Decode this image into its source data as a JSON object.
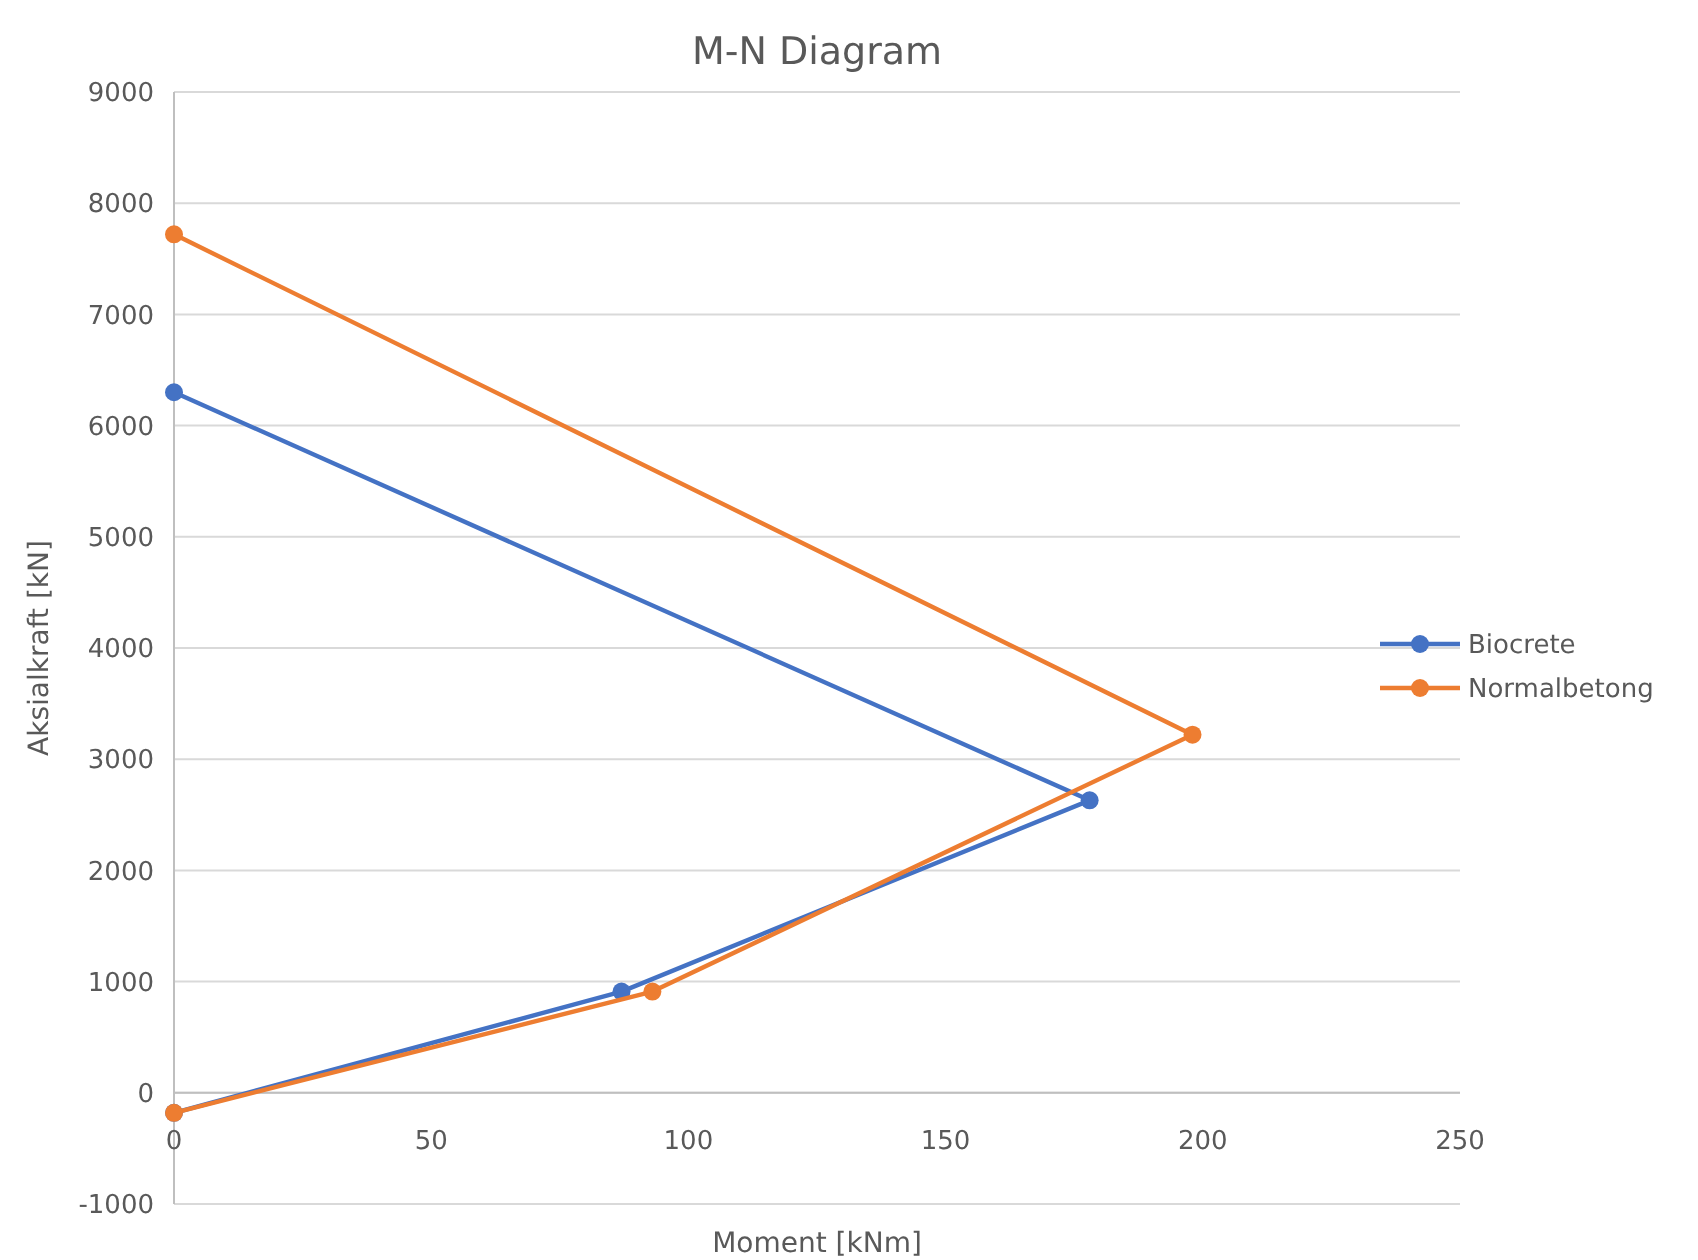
{
  "chart_data": {
    "type": "line",
    "title": "M-N Diagram",
    "xlabel": "Moment [kNm]",
    "ylabel": "Aksialkraft [kN]",
    "series": [
      {
        "name": "Biocrete",
        "color": "#4472c4",
        "x": [
          0,
          87,
          178,
          0
        ],
        "values": [
          -180,
          910,
          2630,
          6300
        ]
      },
      {
        "name": "Normalbetong",
        "color": "#ed7d31",
        "x": [
          0,
          93,
          198,
          0
        ],
        "values": [
          -180,
          910,
          3220,
          7720
        ]
      }
    ],
    "xlim": [
      0,
      250
    ],
    "xticks": [
      0,
      50,
      100,
      150,
      200,
      250
    ],
    "ylim": [
      -1000,
      9000
    ],
    "yticks": [
      -1000,
      0,
      1000,
      2000,
      3000,
      4000,
      5000,
      6000,
      7000,
      8000,
      9000
    ],
    "grid": "y",
    "legend": "right",
    "marker": "circle",
    "line_style": "solid"
  }
}
